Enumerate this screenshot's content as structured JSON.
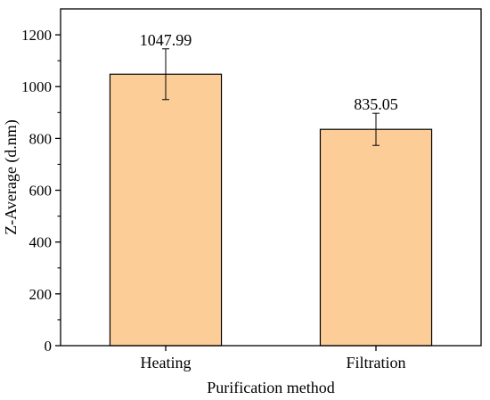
{
  "chart_data": {
    "type": "bar",
    "title": "",
    "xlabel": "Purification method",
    "ylabel": "Z-Average (d.nm)",
    "categories": [
      "Heating",
      "Filtration"
    ],
    "values": [
      1047.99,
      835.05
    ],
    "value_labels": [
      "1047.99",
      "835.05"
    ],
    "error": [
      98,
      62
    ],
    "ylim": [
      0,
      1300
    ],
    "yticks": [
      0,
      200,
      400,
      600,
      800,
      1000,
      1200
    ],
    "ytick_labels": [
      "0",
      "200",
      "400",
      "600",
      "800",
      "1000",
      "1200"
    ],
    "grid": false,
    "bar_color": "#FDCD98",
    "bar_edge_color": "#000000"
  }
}
